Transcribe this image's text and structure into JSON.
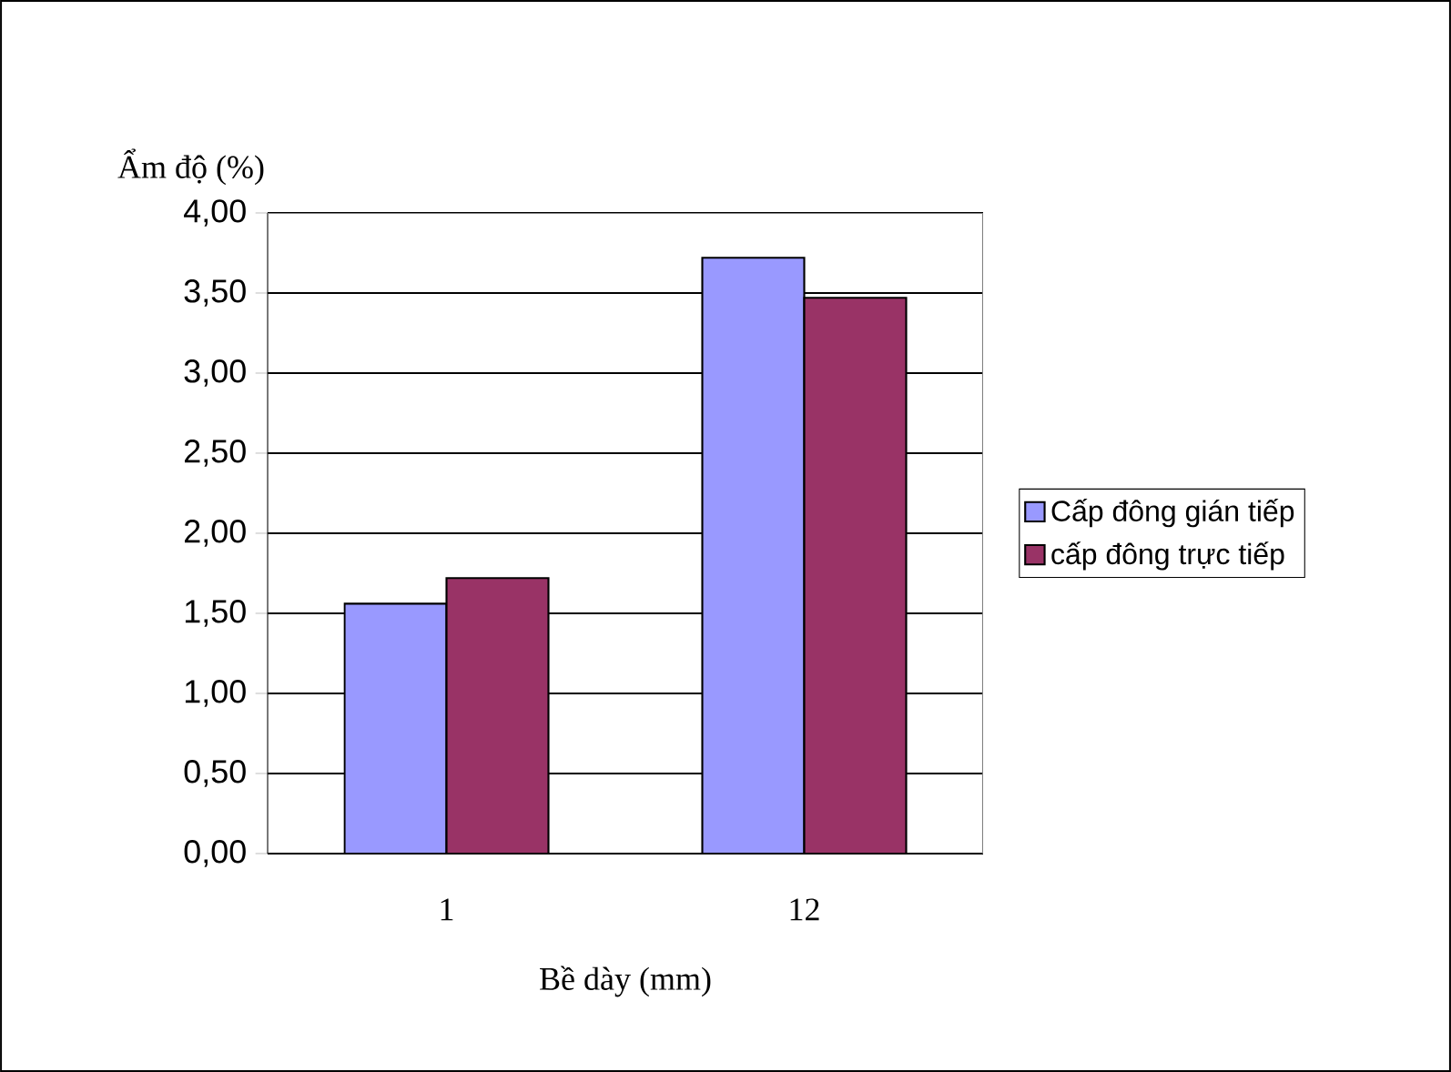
{
  "chart_data": {
    "type": "bar",
    "ylabel": "Ẩm độ (%)",
    "xlabel": "Bề dày (mm)",
    "categories": [
      "1",
      "12"
    ],
    "series": [
      {
        "name": "Cấp đông gián tiếp",
        "color": "#9999ff",
        "values": [
          1.56,
          3.72
        ]
      },
      {
        "name": "cấp đông trực tiếp",
        "color": "#993366",
        "values": [
          1.72,
          3.47
        ]
      }
    ],
    "ylim": [
      0,
      4
    ],
    "yticks": [
      {
        "value": 0,
        "label": "0,00"
      },
      {
        "value": 0.5,
        "label": "0,50"
      },
      {
        "value": 1,
        "label": "1,00"
      },
      {
        "value": 1.5,
        "label": "1,50"
      },
      {
        "value": 2,
        "label": "2,00"
      },
      {
        "value": 2.5,
        "label": "2,50"
      },
      {
        "value": 3,
        "label": "3,00"
      },
      {
        "value": 3.5,
        "label": "3,50"
      },
      {
        "value": 4,
        "label": "4,00"
      }
    ],
    "grid": "y",
    "legend": "right"
  }
}
